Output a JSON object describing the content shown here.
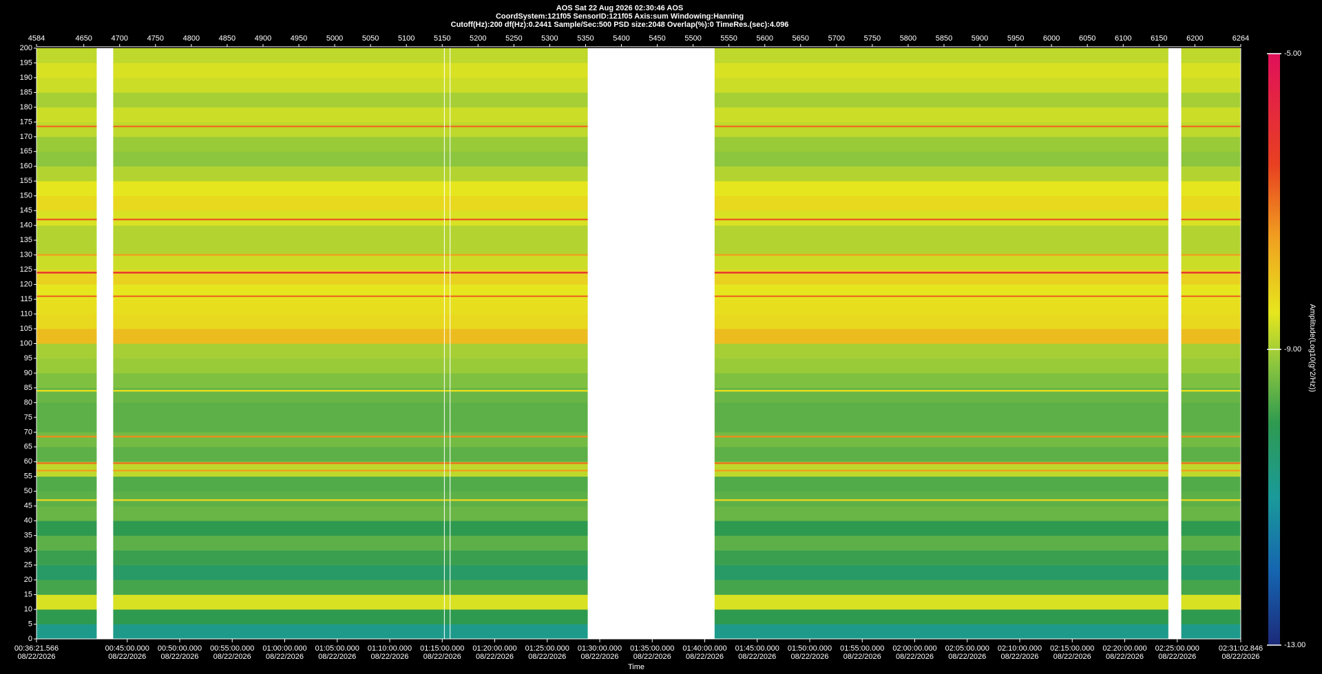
{
  "chart_data": {
    "type": "heatmap",
    "title_lines": [
      "AOS  Sat 22 Aug 2026 02:30:46  AOS",
      "CoordSystem:121f05   SensorID:121f05   Axis:sum   Windowing:Hanning",
      "Cutoff(Hz):200     df(Hz):0.2441     Sample/Sec:500     PSD size:2048     Overlap(%):0     TimeRes.(sec):4.096"
    ],
    "x_label": "Time",
    "colorbar_label": "Amplitude(Log10(g^2/Hz))",
    "xlim": [
      4584,
      6264
    ],
    "xticks": [
      4584,
      4650,
      4700,
      4750,
      4800,
      4850,
      4900,
      4950,
      5000,
      5050,
      5100,
      5150,
      5200,
      5250,
      5300,
      5350,
      5400,
      5450,
      5500,
      5550,
      5600,
      5650,
      5700,
      5750,
      5800,
      5850,
      5900,
      5950,
      6000,
      6050,
      6100,
      6150,
      6200,
      6264
    ],
    "time_ticks": [
      {
        "value": 4584,
        "label": "00:36:21.566"
      },
      {
        "value": 4710.57,
        "label": "00:45:00.000"
      },
      {
        "value": 4783.81,
        "label": "00:50:00.000"
      },
      {
        "value": 4857.05,
        "label": "00:55:00.000"
      },
      {
        "value": 4930.29,
        "label": "01:00:00.000"
      },
      {
        "value": 5003.54,
        "label": "01:05:00.000"
      },
      {
        "value": 5076.78,
        "label": "01:10:00.000"
      },
      {
        "value": 5150.02,
        "label": "01:15:00.000"
      },
      {
        "value": 5223.26,
        "label": "01:20:00.000"
      },
      {
        "value": 5296.5,
        "label": "01:25:00.000"
      },
      {
        "value": 5369.74,
        "label": "01:30:00.000"
      },
      {
        "value": 5442.99,
        "label": "01:35:00.000"
      },
      {
        "value": 5516.23,
        "label": "01:40:00.000"
      },
      {
        "value": 5589.47,
        "label": "01:45:00.000"
      },
      {
        "value": 5662.71,
        "label": "01:50:00.000"
      },
      {
        "value": 5735.95,
        "label": "01:55:00.000"
      },
      {
        "value": 5809.2,
        "label": "02:00:00.000"
      },
      {
        "value": 5882.44,
        "label": "02:05:00.000"
      },
      {
        "value": 5955.68,
        "label": "02:10:00.000"
      },
      {
        "value": 6028.92,
        "label": "02:15:00.000"
      },
      {
        "value": 6102.16,
        "label": "02:20:00.000"
      },
      {
        "value": 6175.4,
        "label": "02:25:00.000"
      },
      {
        "value": 6264,
        "label": "02:31:02.846"
      }
    ],
    "time_tick_dates": [
      "08/22/2026",
      "08/22/2026",
      "08/22/2026",
      "08/22/2026",
      "08/22/2026",
      "08/22/2026",
      "08/22/2026",
      "08/22/2026",
      "08/22/2026",
      "08/22/2026",
      "08/22/2026",
      "08/22/2026",
      "08/22/2026",
      "08/22/2026",
      "08/22/2026",
      "08/22/2026",
      "08/22/2026",
      "08/22/2026",
      "08/22/2026",
      "08/22/2026",
      "08/22/2026",
      "08/22/2026",
      "08/22/2026"
    ],
    "ylim": [
      0,
      200
    ],
    "yticks": [
      0,
      5,
      10,
      15,
      20,
      25,
      30,
      35,
      40,
      45,
      50,
      55,
      60,
      65,
      70,
      75,
      80,
      85,
      90,
      95,
      100,
      105,
      110,
      115,
      120,
      125,
      130,
      135,
      140,
      145,
      150,
      155,
      160,
      165,
      170,
      175,
      180,
      185,
      190,
      195,
      200
    ],
    "segments": [
      [
        4584,
        4668
      ],
      [
        4691,
        5152.5
      ],
      [
        5153.5,
        5160.5
      ],
      [
        5161.5,
        5353
      ],
      [
        5530,
        6163
      ],
      [
        6181,
        6264
      ]
    ],
    "y_bins": [
      0,
      5,
      10,
      15,
      20,
      25,
      30,
      35,
      40,
      45,
      50,
      55,
      60,
      65,
      70,
      75,
      80,
      85,
      90,
      95,
      100,
      105,
      110,
      115,
      120,
      125,
      130,
      135,
      140,
      145,
      150,
      155,
      160,
      165,
      170,
      175,
      180,
      185,
      190,
      195,
      200
    ],
    "values": [
      -10.8,
      -10.0,
      -8.6,
      -9.8,
      -10.3,
      -9.9,
      -9.6,
      -10.0,
      -9.5,
      -9.6,
      -9.7,
      -8.8,
      -9.6,
      -9.4,
      -9.6,
      -9.6,
      -9.5,
      -9.3,
      -9.1,
      -9.0,
      -7.9,
      -8.3,
      -8.4,
      -8.5,
      -8.2,
      -8.7,
      -8.9,
      -8.9,
      -8.6,
      -8.3,
      -8.5,
      -8.9,
      -9.2,
      -9.1,
      -8.8,
      -8.7,
      -9.0,
      -8.7,
      -8.6,
      -8.8
    ],
    "lines": {
      "y": [
        173.5,
        142,
        130,
        124,
        116,
        84,
        68.5,
        59.5,
        57,
        47
      ],
      "values": [
        -7.0,
        -6.8,
        -7.5,
        -6.0,
        -7.0,
        -8.4,
        -7.3,
        -7.0,
        -7.5,
        -8.3
      ]
    },
    "clim": [
      -13,
      -5
    ],
    "colorbar_ticks": [
      {
        "value": -5,
        "label": "-5.00"
      },
      {
        "value": -9,
        "label": "-9.00"
      },
      {
        "value": -13,
        "label": "-13.00"
      }
    ],
    "colorscale": [
      [
        -13,
        "#1c2a7a"
      ],
      [
        -12,
        "#1565b0"
      ],
      [
        -11,
        "#1a9a9a"
      ],
      [
        -10,
        "#2e9a50"
      ],
      [
        -9.2,
        "#8cc63e"
      ],
      [
        -8.5,
        "#e6e61e"
      ],
      [
        -7.5,
        "#f0a020"
      ],
      [
        -6.5,
        "#e84020"
      ],
      [
        -5,
        "#e0105a"
      ]
    ]
  }
}
